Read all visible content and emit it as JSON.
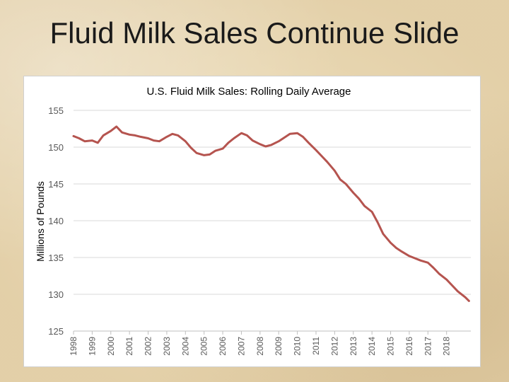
{
  "slide": {
    "title": "Fluid Milk Sales Continue Slide"
  },
  "colors": {
    "line": "#b5544f",
    "grid": "#d9d9d9",
    "text": "#595959"
  },
  "chart_data": {
    "type": "line",
    "title": "U.S. Fluid Milk Sales: Rolling Daily Average",
    "xlabel": "",
    "ylabel": "Millions of Pounds",
    "ylim": [
      125,
      155
    ],
    "yticks": [
      125,
      130,
      135,
      140,
      145,
      150,
      155
    ],
    "xlim": [
      1998,
      2019.3
    ],
    "xticks": [
      "1998",
      "1999",
      "2000",
      "2001",
      "2002",
      "2003",
      "2004",
      "2005",
      "2006",
      "2007",
      "2008",
      "2009",
      "2010",
      "2011",
      "2012",
      "2013",
      "2014",
      "2015",
      "2016",
      "2017",
      "2018"
    ],
    "grid": true,
    "legend": "none",
    "series": [
      {
        "name": "Rolling Daily Average",
        "x": [
          1998.0,
          1998.3,
          1998.6,
          1999.0,
          1999.3,
          1999.6,
          2000.0,
          2000.3,
          2000.6,
          2001.0,
          2001.3,
          2001.6,
          2002.0,
          2002.3,
          2002.6,
          2003.0,
          2003.3,
          2003.6,
          2004.0,
          2004.3,
          2004.6,
          2005.0,
          2005.3,
          2005.6,
          2006.0,
          2006.3,
          2006.6,
          2007.0,
          2007.3,
          2007.6,
          2008.0,
          2008.3,
          2008.6,
          2009.0,
          2009.3,
          2009.6,
          2010.0,
          2010.3,
          2010.6,
          2011.0,
          2011.3,
          2011.6,
          2012.0,
          2012.3,
          2012.6,
          2013.0,
          2013.3,
          2013.6,
          2014.0,
          2014.3,
          2014.6,
          2015.0,
          2015.3,
          2015.6,
          2016.0,
          2016.3,
          2016.6,
          2017.0,
          2017.3,
          2017.6,
          2018.0,
          2018.3,
          2018.6,
          2019.0,
          2019.2
        ],
        "y": [
          151.5,
          151.2,
          150.8,
          150.9,
          150.6,
          151.6,
          152.2,
          152.8,
          152.0,
          151.7,
          151.6,
          151.4,
          151.2,
          150.9,
          150.8,
          151.4,
          151.8,
          151.6,
          150.8,
          149.9,
          149.2,
          148.9,
          149.0,
          149.5,
          149.8,
          150.6,
          151.2,
          151.9,
          151.6,
          150.9,
          150.4,
          150.1,
          150.3,
          150.8,
          151.3,
          151.8,
          151.9,
          151.4,
          150.6,
          149.6,
          148.8,
          148.0,
          146.8,
          145.6,
          145.0,
          143.8,
          143.0,
          142.0,
          141.2,
          139.8,
          138.2,
          137.0,
          136.3,
          135.8,
          135.2,
          134.9,
          134.6,
          134.3,
          133.6,
          132.8,
          132.0,
          131.2,
          130.4,
          129.6,
          129.1
        ]
      }
    ]
  }
}
